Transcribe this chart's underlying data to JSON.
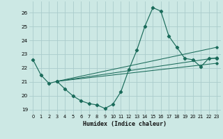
{
  "background_color": "#cce8e4",
  "grid_color": "#aacccc",
  "line_color": "#1a6b5a",
  "xlabel": "Humidex (Indice chaleur)",
  "xlim": [
    -0.5,
    23.5
  ],
  "ylim_min": 18.7,
  "ylim_max": 26.8,
  "yticks": [
    19,
    20,
    21,
    22,
    23,
    24,
    25,
    26
  ],
  "xticks": [
    0,
    1,
    2,
    3,
    4,
    5,
    6,
    7,
    8,
    9,
    10,
    11,
    12,
    13,
    14,
    15,
    16,
    17,
    18,
    19,
    20,
    21,
    22,
    23
  ],
  "line1_x": [
    0,
    1,
    2,
    3,
    4,
    5,
    6,
    7,
    8,
    9,
    10,
    11,
    12,
    13,
    14,
    15,
    16,
    17,
    18,
    19,
    20,
    21,
    22,
    23
  ],
  "line1_y": [
    22.6,
    21.5,
    20.9,
    21.05,
    20.5,
    20.0,
    19.65,
    19.45,
    19.35,
    19.1,
    19.4,
    20.3,
    21.9,
    23.3,
    25.0,
    26.35,
    26.1,
    24.3,
    23.5,
    22.7,
    22.6,
    22.1,
    22.7,
    22.7
  ],
  "line2_x": [
    3,
    23
  ],
  "line2_y": [
    21.05,
    23.5
  ],
  "line3_x": [
    3,
    23
  ],
  "line3_y": [
    21.05,
    22.75
  ],
  "line4_x": [
    3,
    23
  ],
  "line4_y": [
    21.05,
    22.35
  ]
}
